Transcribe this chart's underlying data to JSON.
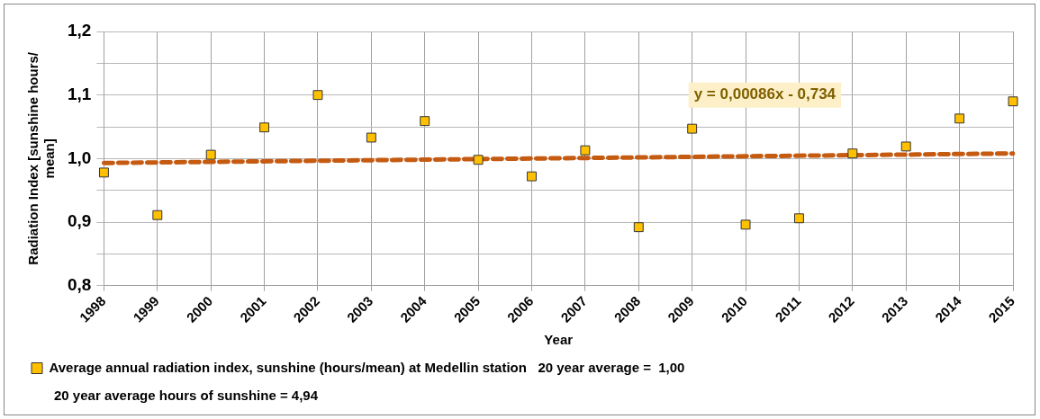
{
  "chart_data": {
    "type": "scatter",
    "xlabel": "Year",
    "ylabel": "Radiation Index [sunshine hours/ mean]",
    "categories": [
      "1998",
      "1999",
      "2000",
      "2001",
      "2002",
      "2003",
      "2004",
      "2005",
      "2006",
      "2007",
      "2008",
      "2009",
      "2010",
      "2011",
      "2012",
      "2013",
      "2014",
      "2015"
    ],
    "series": [
      {
        "name": "Average annual radiation index, sunshine (hours/mean) at Medellin station   20 year average =  1,00",
        "color": "#ffc000",
        "values": [
          0.978,
          0.911,
          1.006,
          1.049,
          1.1,
          1.033,
          1.059,
          0.998,
          0.972,
          1.013,
          0.892,
          1.047,
          0.896,
          0.906,
          1.008,
          1.019,
          1.063,
          1.09
        ]
      },
      {
        "type": "line",
        "color": "#c55a11",
        "line_style": "dashed",
        "marker": "none",
        "values": [
          0.993,
          null,
          null,
          null,
          null,
          null,
          null,
          null,
          null,
          null,
          null,
          null,
          null,
          null,
          null,
          null,
          null,
          1.008
        ]
      }
    ],
    "ylim": [
      0.8,
      1.2
    ],
    "yticks": [
      {
        "value": 0.8,
        "label": "0,8"
      },
      {
        "value": 0.85,
        "label": null
      },
      {
        "value": 0.9,
        "label": "0,9"
      },
      {
        "value": 0.95,
        "label": null
      },
      {
        "value": 1.0,
        "label": "1,0"
      },
      {
        "value": 1.05,
        "label": null
      },
      {
        "value": 1.1,
        "label": "1,1"
      },
      {
        "value": 1.15,
        "label": null
      },
      {
        "value": 1.2,
        "label": "1,2"
      }
    ],
    "grid": true,
    "legend": "bottom",
    "marker": "square",
    "annotations": [
      "y = 0,00086x - 0,734",
      "20 year average hours of sunshine = 4,94"
    ]
  }
}
